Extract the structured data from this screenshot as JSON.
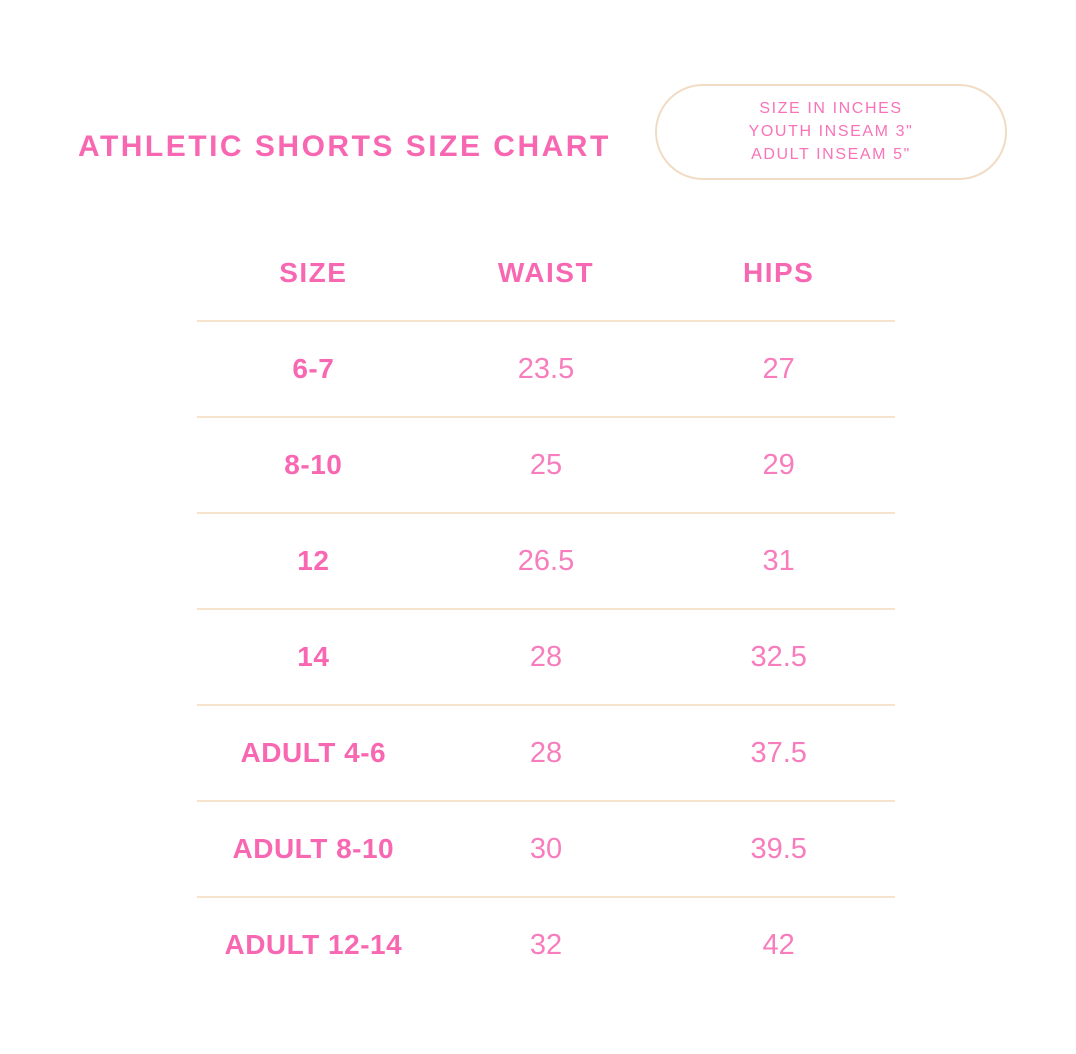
{
  "page": {
    "title": "ATHLETIC SHORTS SIZE CHART",
    "badge": {
      "lines": [
        "SIZE IN INCHES",
        "YOUTH INSEAM 3\"",
        "ADULT INSEAM 5\""
      ]
    }
  },
  "chart_data": {
    "type": "table",
    "title": "ATHLETIC SHORTS SIZE CHART",
    "units_note": "SIZE IN INCHES",
    "youth_inseam_note": "YOUTH INSEAM 3\"",
    "adult_inseam_note": "ADULT INSEAM 5\"",
    "columns": [
      "SIZE",
      "WAIST",
      "HIPS"
    ],
    "rows": [
      {
        "size": "6-7",
        "waist": "23.5",
        "hips": "27"
      },
      {
        "size": "8-10",
        "waist": "25",
        "hips": "29"
      },
      {
        "size": "12",
        "waist": "26.5",
        "hips": "31"
      },
      {
        "size": "14",
        "waist": "28",
        "hips": "32.5"
      },
      {
        "size": "ADULT 4-6",
        "waist": "28",
        "hips": "37.5"
      },
      {
        "size": "ADULT 8-10",
        "waist": "30",
        "hips": "39.5"
      },
      {
        "size": "ADULT 12-14",
        "waist": "32",
        "hips": "42"
      }
    ]
  },
  "colors": {
    "accent_pink": "#F868B2",
    "value_pink": "#F87DBD",
    "badge_text_pink": "#F873B8",
    "divider_tan": "#F5E3CD",
    "badge_border_tan": "#F1DCC3",
    "background": "#FFFFFF"
  }
}
